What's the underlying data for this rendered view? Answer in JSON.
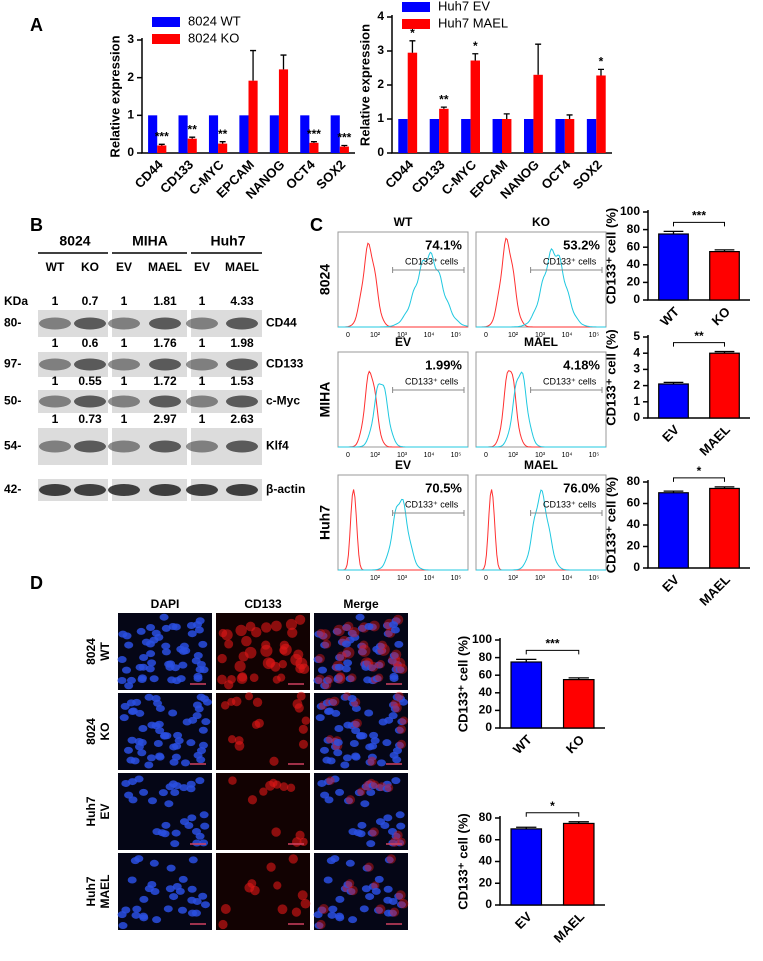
{
  "panel_labels": [
    "A",
    "B",
    "C",
    "D"
  ],
  "chart_data": [
    {
      "type": "bar",
      "y_label": "Relative expression",
      "categories": [
        "CD44",
        "CD133",
        "C-MYC",
        "EPCAM",
        "NANOG",
        "OCT4",
        "SOX2"
      ],
      "series": [
        {
          "name": "8024 WT",
          "color": "#0000ff",
          "values": [
            1,
            1,
            1,
            1,
            1,
            1,
            1
          ]
        },
        {
          "name": "8024 KO",
          "color": "#ff0000",
          "values": [
            0.2,
            0.38,
            0.25,
            1.92,
            2.22,
            0.27,
            0.17
          ],
          "errors": [
            0.03,
            0.04,
            0.05,
            0.8,
            0.38,
            0.03,
            0.03
          ]
        }
      ],
      "significance": [
        "***",
        "**",
        "**",
        null,
        null,
        "***",
        "***"
      ],
      "ylim": [
        0,
        3
      ],
      "yticks": [
        0,
        1,
        2,
        3
      ],
      "legend": "top-left"
    },
    {
      "type": "bar",
      "y_label": "Relative expression",
      "categories": [
        "CD44",
        "CD133",
        "C-MYC",
        "EPCAM",
        "NANOG",
        "OCT4",
        "SOX2"
      ],
      "series": [
        {
          "name": "Huh7 EV",
          "color": "#0000ff",
          "values": [
            1,
            1,
            1,
            1,
            1,
            1,
            1
          ]
        },
        {
          "name": "Huh7 MAEL",
          "color": "#ff0000",
          "values": [
            2.95,
            1.3,
            2.72,
            1.0,
            2.3,
            1.0,
            2.28
          ],
          "errors": [
            0.35,
            0.05,
            0.2,
            0.15,
            0.9,
            0.12,
            0.18
          ]
        }
      ],
      "significance": [
        "*",
        "**",
        "*",
        null,
        null,
        null,
        "*"
      ],
      "ylim": [
        0,
        4
      ],
      "yticks": [
        0,
        1,
        2,
        3,
        4
      ],
      "legend": "top-left"
    },
    {
      "type": "bar",
      "y_label": "CD133⁺ cell (%)",
      "categories": [
        "WT",
        "KO"
      ],
      "values": [
        75,
        55
      ],
      "errors": [
        3,
        2
      ],
      "colors": [
        "#0000ff",
        "#ff0000"
      ],
      "significance": "***",
      "ylim": [
        0,
        100
      ],
      "yticks": [
        0,
        20,
        40,
        60,
        80,
        100
      ]
    },
    {
      "type": "bar",
      "y_label": "CD133⁺ cell (%)",
      "categories": [
        "EV",
        "MAEL"
      ],
      "values": [
        2.1,
        4.0
      ],
      "errors": [
        0.1,
        0.1
      ],
      "colors": [
        "#0000ff",
        "#ff0000"
      ],
      "significance": "**",
      "ylim": [
        0,
        5
      ],
      "yticks": [
        0,
        1,
        2,
        3,
        4,
        5
      ]
    },
    {
      "type": "bar",
      "y_label": "CD133⁺ cell (%)",
      "categories": [
        "EV",
        "MAEL"
      ],
      "values": [
        70,
        74
      ],
      "errors": [
        1.5,
        1.5
      ],
      "colors": [
        "#0000ff",
        "#ff0000"
      ],
      "significance": "*",
      "ylim": [
        0,
        80
      ],
      "yticks": [
        0,
        20,
        40,
        60,
        80
      ]
    },
    {
      "type": "bar",
      "y_label": "CD133⁺ cell (%)",
      "categories": [
        "WT",
        "KO"
      ],
      "values": [
        75,
        55
      ],
      "errors": [
        3,
        2
      ],
      "colors": [
        "#0000ff",
        "#ff0000"
      ],
      "significance": "***",
      "ylim": [
        0,
        100
      ],
      "yticks": [
        0,
        20,
        40,
        60,
        80,
        100
      ]
    },
    {
      "type": "bar",
      "y_label": "CD133⁺ cell (%)",
      "categories": [
        "EV",
        "MAEL"
      ],
      "values": [
        70,
        75
      ],
      "errors": [
        1.5,
        1.5
      ],
      "colors": [
        "#0000ff",
        "#ff0000"
      ],
      "significance": "*",
      "ylim": [
        0,
        80
      ],
      "yticks": [
        0,
        20,
        40,
        60,
        80
      ]
    }
  ],
  "western_blot": {
    "groups": [
      {
        "name": "8024",
        "lanes": [
          "WT",
          "KO"
        ]
      },
      {
        "name": "MIHA",
        "lanes": [
          "EV",
          "MAEL"
        ]
      },
      {
        "name": "Huh7",
        "lanes": [
          "EV",
          "MAEL"
        ]
      }
    ],
    "size_unit": "KDa",
    "rows": [
      {
        "marker": "80-",
        "protein": "CD44",
        "ratios": [
          1,
          0.7,
          1,
          1.81,
          1,
          4.33
        ]
      },
      {
        "marker": "97-",
        "protein": "CD133",
        "ratios": [
          1,
          0.6,
          1,
          1.76,
          1,
          1.98
        ]
      },
      {
        "marker": "50-",
        "protein": "c-Myc",
        "ratios": [
          1,
          0.55,
          1,
          1.72,
          1,
          1.53
        ]
      },
      {
        "marker": "54-",
        "protein": "Klf4",
        "ratios": [
          1,
          0.73,
          1,
          2.97,
          1,
          2.63
        ]
      },
      {
        "marker": "42-",
        "protein": "β-actin"
      }
    ]
  },
  "flow": {
    "rows": [
      {
        "name": "8024",
        "panels": [
          {
            "label": "WT",
            "percent": "74.1%"
          },
          {
            "label": "KO",
            "percent": "53.2%"
          }
        ]
      },
      {
        "name": "MIHA",
        "panels": [
          {
            "label": "EV",
            "percent": "1.99%"
          },
          {
            "label": "MAEL",
            "percent": "4.18%"
          }
        ]
      },
      {
        "name": "Huh7",
        "panels": [
          {
            "label": "EV",
            "percent": "70.5%"
          },
          {
            "label": "MAEL",
            "percent": "76.0%"
          }
        ]
      }
    ],
    "gate_label": "CD133⁺ cells",
    "axis_ticks": [
      "0",
      "10²",
      "10³",
      "10⁴",
      "10⁵"
    ]
  },
  "immunofluorescence": {
    "columns": [
      "DAPI",
      "CD133",
      "Merge"
    ],
    "rows": [
      [
        "8024",
        "WT"
      ],
      [
        "8024",
        "KO"
      ],
      [
        "Huh7",
        "EV"
      ],
      [
        "Huh7",
        "MAEL"
      ]
    ]
  }
}
